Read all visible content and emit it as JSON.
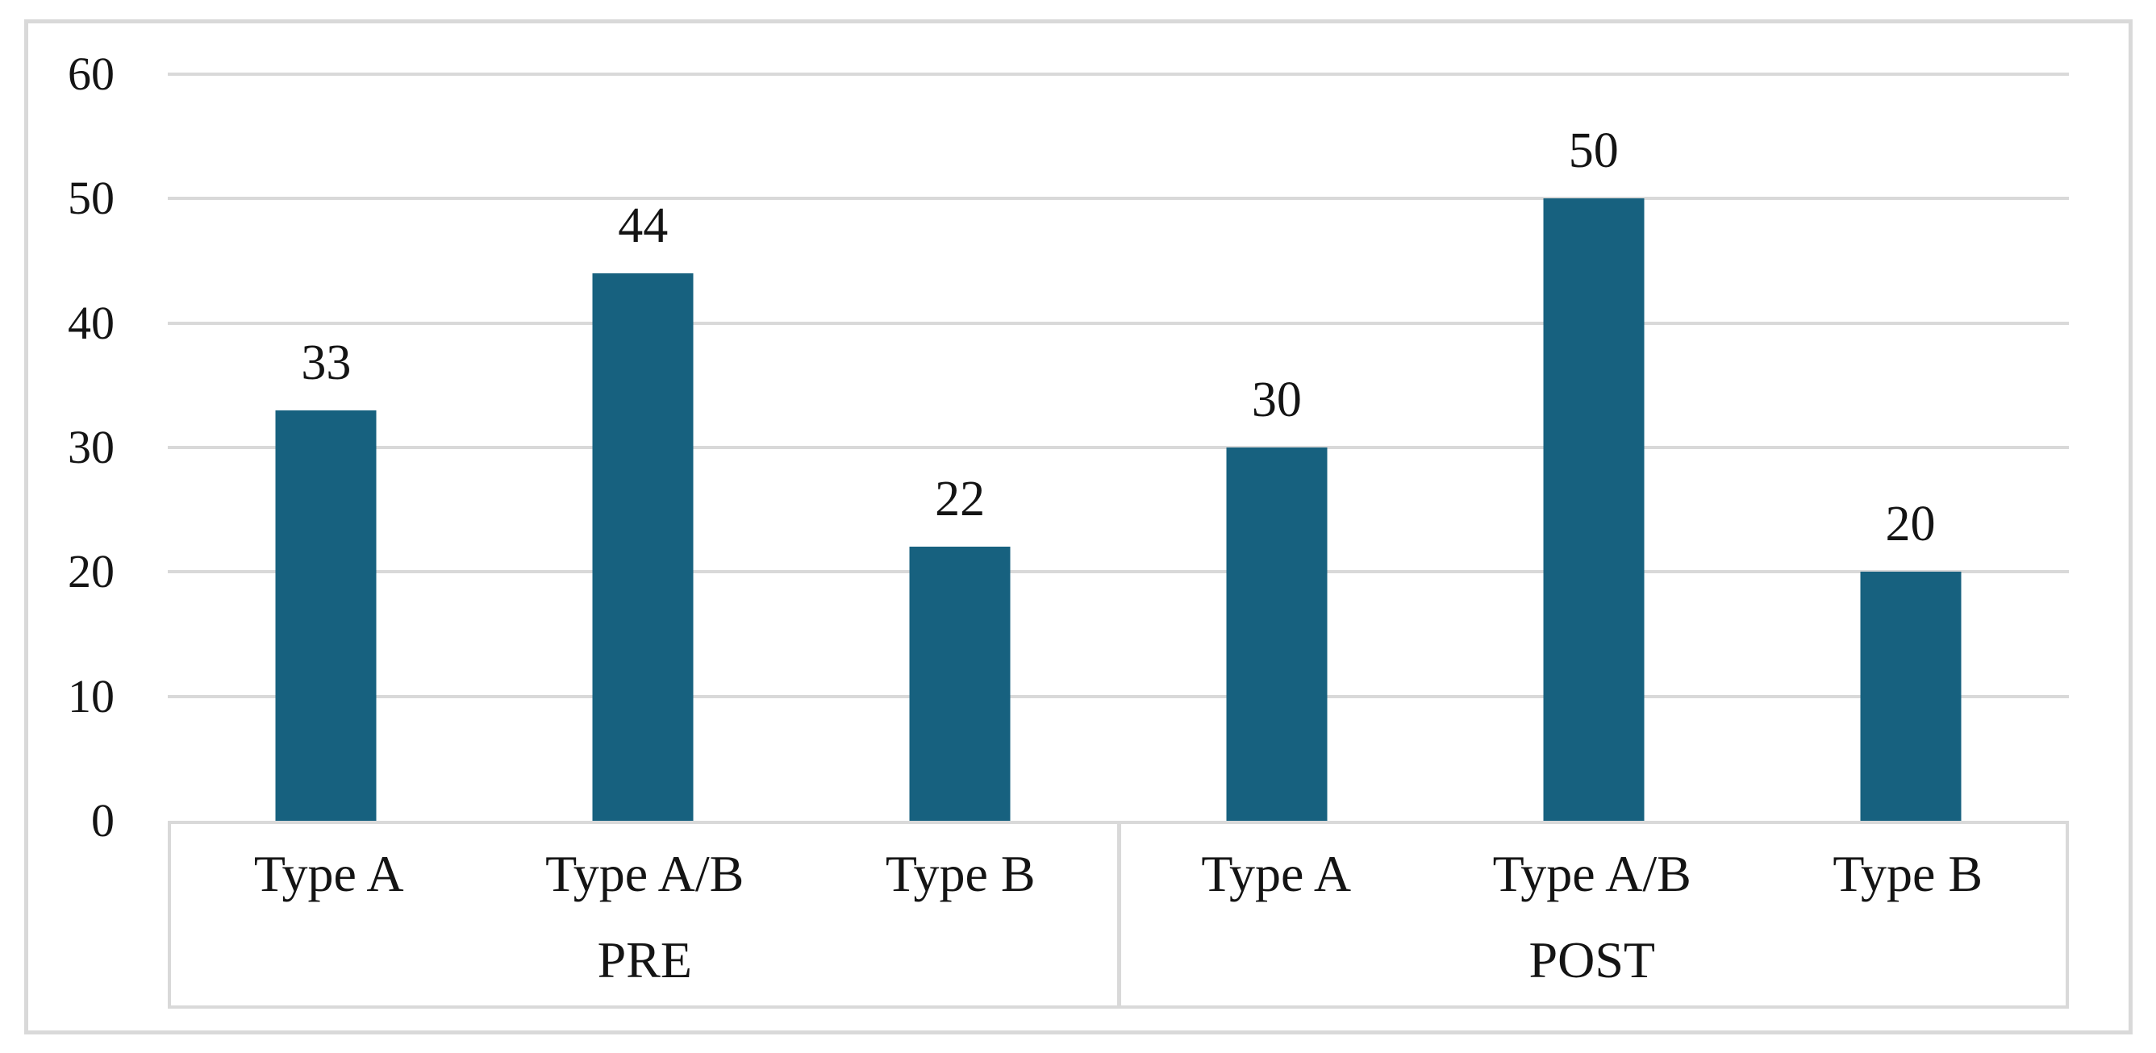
{
  "chart_data": {
    "type": "bar",
    "title": "",
    "groups": [
      "PRE",
      "POST"
    ],
    "categories": [
      "Type A",
      "Type A/B",
      "Type B"
    ],
    "series": [
      {
        "name": "PRE",
        "categories": [
          "Type A",
          "Type A/B",
          "Type B"
        ],
        "values": [
          33,
          44,
          22
        ]
      },
      {
        "name": "POST",
        "categories": [
          "Type A",
          "Type A/B",
          "Type B"
        ],
        "values": [
          30,
          50,
          20
        ]
      }
    ],
    "data_labels": [
      33,
      44,
      22,
      30,
      50,
      20
    ],
    "yticks": [
      0,
      10,
      20,
      30,
      40,
      50,
      60
    ],
    "ylim": [
      0,
      60
    ],
    "xlabel": "",
    "ylabel": "",
    "grid": true,
    "legend_position": "none",
    "colors": {
      "bar": "#17617F",
      "gridline": "#D9D9D9",
      "frame_border": "#D9D9D9",
      "text": "#141414",
      "background": "#FFFFFF"
    }
  }
}
